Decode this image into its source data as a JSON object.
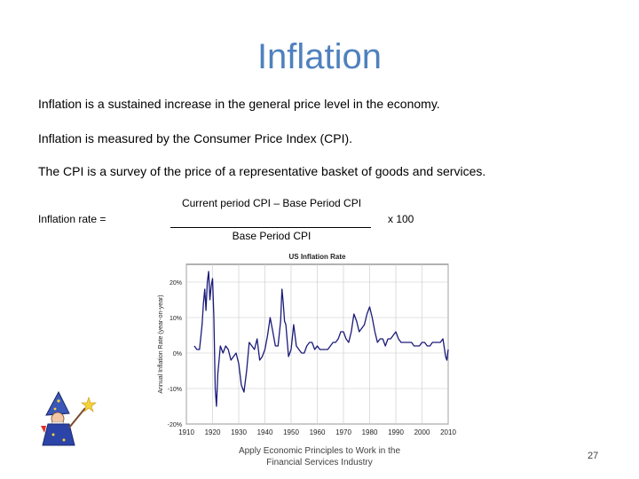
{
  "slide": {
    "title": "Inflation",
    "lines": [
      "Inflation is a sustained increase in the general price level in the economy.",
      "Inflation is measured by the Consumer Price Index (CPI).",
      "The CPI is a survey of the price of a representative basket of goods and services."
    ],
    "formula": {
      "label": "Inflation rate =",
      "numerator": "Current period CPI – Base Period CPI",
      "denominator": "Base Period CPI",
      "multiplier": "x 100"
    },
    "footer": "Apply Economic Principles to Work in the Financial Services Industry",
    "page_number": "27",
    "clipart": "wizard-clipart"
  },
  "chart_data": {
    "type": "line",
    "title": "US Inflation Rate",
    "ylabel": "Annual Inflation Rate (year-on-year)",
    "xlabel": "",
    "x_ticks": [
      "1910",
      "1920",
      "1930",
      "1940",
      "1950",
      "1960",
      "1970",
      "1980",
      "1990",
      "2000",
      "2010"
    ],
    "y_ticks": [
      "20%",
      "10%",
      "0%",
      "-10%",
      "-20%"
    ],
    "xlim": [
      1910,
      2010
    ],
    "ylim": [
      -20,
      25
    ],
    "grid": true,
    "legend": "none",
    "series_color": "#1a1a7a",
    "x": [
      1913,
      1914,
      1915,
      1916,
      1916.5,
      1917,
      1917.5,
      1918,
      1918.5,
      1919,
      1919.5,
      1920,
      1920.5,
      1921,
      1921.5,
      1922,
      1923,
      1924,
      1925,
      1926,
      1927,
      1928,
      1929,
      1930,
      1931,
      1932,
      1933,
      1934,
      1935,
      1936,
      1937,
      1938,
      1939,
      1940,
      1941,
      1942,
      1943,
      1944,
      1945,
      1946,
      1946.5,
      1947,
      1947.5,
      1948,
      1949,
      1950,
      1951,
      1952,
      1953,
      1954,
      1955,
      1956,
      1957,
      1958,
      1959,
      1960,
      1961,
      1962,
      1963,
      1964,
      1965,
      1966,
      1967,
      1968,
      1969,
      1970,
      1971,
      1972,
      1973,
      1974,
      1975,
      1976,
      1977,
      1978,
      1979,
      1980,
      1981,
      1982,
      1983,
      1984,
      1985,
      1986,
      1987,
      1988,
      1989,
      1990,
      1991,
      1992,
      1993,
      1994,
      1995,
      1996,
      1997,
      1998,
      1999,
      2000,
      2001,
      2002,
      2003,
      2004,
      2005,
      2006,
      2007,
      2008,
      2009,
      2009.5,
      2010
    ],
    "y": [
      2,
      1,
      1,
      8,
      14,
      18,
      12,
      20,
      23,
      15,
      19,
      21,
      10,
      -10,
      -15,
      -6,
      2,
      0,
      2,
      1,
      -2,
      -1,
      0,
      -3,
      -9,
      -11,
      -5,
      3,
      2,
      1,
      4,
      -2,
      -1,
      1,
      5,
      10,
      6,
      2,
      2,
      9,
      18,
      14,
      9,
      8,
      -1,
      1,
      8,
      2,
      1,
      0,
      0,
      2,
      3,
      3,
      1,
      2,
      1,
      1,
      1,
      1,
      2,
      3,
      3,
      4,
      6,
      6,
      4,
      3,
      6,
      11,
      9,
      6,
      7,
      8,
      11,
      13,
      10,
      6,
      3,
      4,
      4,
      2,
      4,
      4,
      5,
      6,
      4,
      3,
      3,
      3,
      3,
      3,
      2,
      2,
      2,
      3,
      3,
      2,
      2,
      3,
      3,
      3,
      3,
      4,
      -1,
      -2,
      1
    ]
  }
}
